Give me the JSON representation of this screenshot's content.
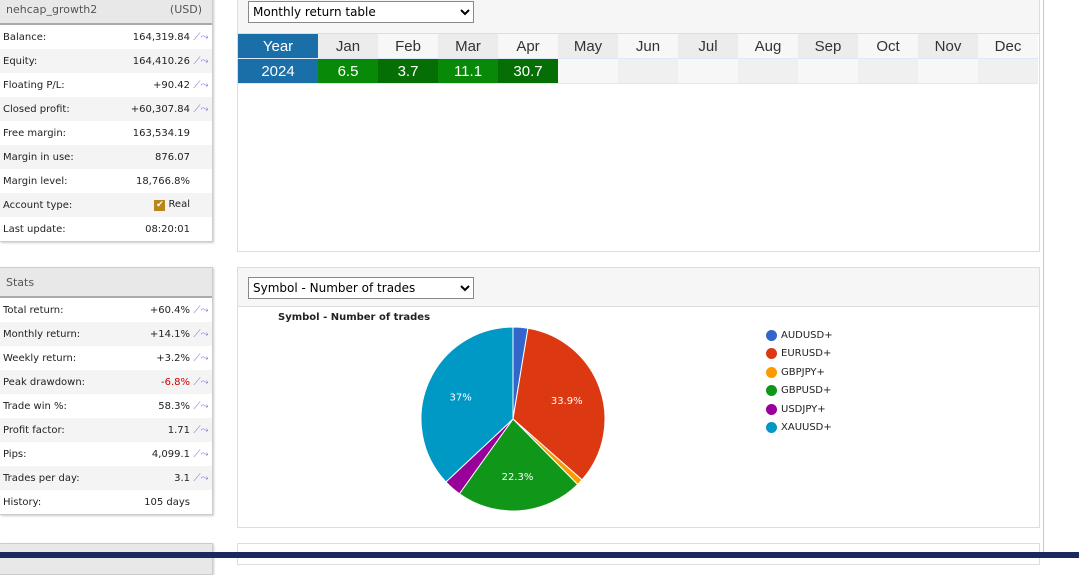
{
  "account": {
    "name": "nehcap_growth2",
    "currency": "(USD)",
    "rows": [
      {
        "label": "Balance:",
        "value": "164,319.84",
        "chart": true
      },
      {
        "label": "Equity:",
        "value": "164,410.26",
        "chart": true
      },
      {
        "label": "Floating P/L:",
        "value": "+90.42",
        "chart": true
      },
      {
        "label": "Closed profit:",
        "value": "+60,307.84",
        "chart": true
      },
      {
        "label": "Free margin:",
        "value": "163,534.19",
        "chart": false
      },
      {
        "label": "Margin in use:",
        "value": "876.07",
        "chart": false
      },
      {
        "label": "Margin level:",
        "value": "18,766.8%",
        "chart": false
      },
      {
        "label": "Account type:",
        "value": "Real",
        "chart": false,
        "checkbox": true
      },
      {
        "label": "Last update:",
        "value": "08:20:01",
        "chart": false
      }
    ]
  },
  "stats": {
    "title": "Stats",
    "rows": [
      {
        "label": "Total return:",
        "value": "+60.4%",
        "chart": true
      },
      {
        "label": "Monthly return:",
        "value": "+14.1%",
        "chart": true
      },
      {
        "label": "Weekly return:",
        "value": "+3.2%",
        "chart": true
      },
      {
        "label": "Peak drawdown:",
        "value": "-6.8%",
        "chart": true,
        "negative": true
      },
      {
        "label": "Trade win %:",
        "value": "58.3%",
        "chart": true
      },
      {
        "label": "Profit factor:",
        "value": "1.71",
        "chart": true
      },
      {
        "label": "Pips:",
        "value": "4,099.1",
        "chart": true
      },
      {
        "label": "Trades per day:",
        "value": "3.1",
        "chart": true
      },
      {
        "label": "History:",
        "value": "105 days",
        "chart": false
      }
    ]
  },
  "monthly": {
    "select": "Monthly return table",
    "header": [
      "Year",
      "Jan",
      "Feb",
      "Mar",
      "Apr",
      "May",
      "Jun",
      "Jul",
      "Aug",
      "Sep",
      "Oct",
      "Nov",
      "Dec"
    ],
    "rows": [
      [
        "2024",
        "6.5",
        "3.7",
        "11.1",
        "30.7",
        "",
        "",
        "",
        "",
        "",
        "",
        "",
        ""
      ]
    ]
  },
  "symbols": {
    "select": "Symbol - Number of trades"
  },
  "chart_data": {
    "type": "pie",
    "title": "Symbol - Number of trades",
    "legend": "right",
    "labels": [
      "AUDUSD+",
      "EURUSD+",
      "GBPJPY+",
      "GBPUSD+",
      "USDJPY+",
      "XAUUSD+"
    ],
    "values": [
      2.6,
      33.9,
      1.1,
      22.3,
      3.1,
      37.0
    ],
    "shown_labels": [
      "",
      "33.9%",
      "",
      "22.3%",
      "",
      "37%"
    ],
    "colors": [
      "#3366cc",
      "#dc3912",
      "#ff9900",
      "#109618",
      "#990099",
      "#0099c6"
    ]
  }
}
